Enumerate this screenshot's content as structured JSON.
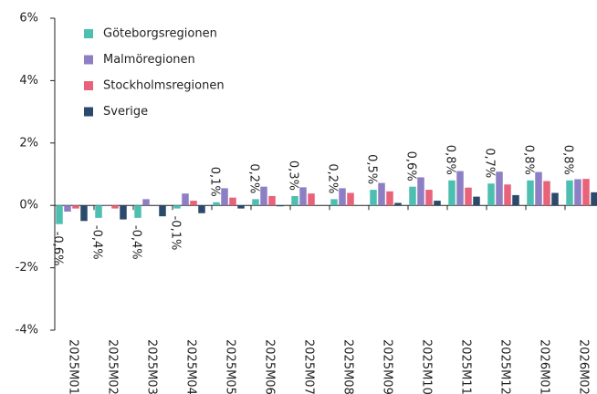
{
  "chart_data": {
    "type": "bar",
    "categories": [
      "2025M01",
      "2025M02",
      "2025M03",
      "2025M04",
      "2025M05",
      "2025M06",
      "2025M07",
      "2025M08",
      "2025M09",
      "2025M10",
      "2025M11",
      "2025M12",
      "2026M01",
      "2026M02"
    ],
    "series": [
      {
        "name": "Göteborgsregionen",
        "color": "#4dbfb0",
        "values": [
          -0.6,
          -0.4,
          -0.4,
          -0.1,
          0.1,
          0.2,
          0.3,
          0.2,
          0.5,
          0.6,
          0.8,
          0.7,
          0.8,
          0.8
        ],
        "value_labels": [
          "-0,6%",
          "-0,4%",
          "-0,4%",
          "-0,1%",
          "0,1%",
          "0,2%",
          "0,3%",
          "0,2%",
          "0,5%",
          "0,6%",
          "0,8%",
          "0,7%",
          "0,8%",
          "0,8%"
        ]
      },
      {
        "name": "Malmöregionen",
        "color": "#8e7fc4",
        "values": [
          -0.2,
          0.02,
          0.2,
          0.38,
          0.55,
          0.6,
          0.58,
          0.55,
          0.72,
          0.9,
          1.1,
          1.08,
          1.07,
          0.84
        ]
      },
      {
        "name": "Stockholmsregionen",
        "color": "#e8627a",
        "values": [
          -0.1,
          -0.1,
          0.0,
          0.15,
          0.25,
          0.3,
          0.38,
          0.4,
          0.45,
          0.5,
          0.57,
          0.67,
          0.78,
          0.85
        ]
      },
      {
        "name": "Sverige",
        "color": "#2b4a6b",
        "values": [
          -0.5,
          -0.45,
          -0.35,
          -0.25,
          -0.1,
          -0.03,
          0.0,
          0.0,
          0.08,
          0.15,
          0.28,
          0.33,
          0.4,
          0.42
        ]
      }
    ],
    "ylim": [
      -4,
      6
    ],
    "yticks": [
      {
        "value": -4,
        "label": "-4%"
      },
      {
        "value": -2,
        "label": "-2%"
      },
      {
        "value": 0,
        "label": "0%"
      },
      {
        "value": 2,
        "label": "2%"
      },
      {
        "value": 4,
        "label": "4%"
      },
      {
        "value": 6,
        "label": "6%"
      }
    ],
    "legend": "upper left"
  }
}
